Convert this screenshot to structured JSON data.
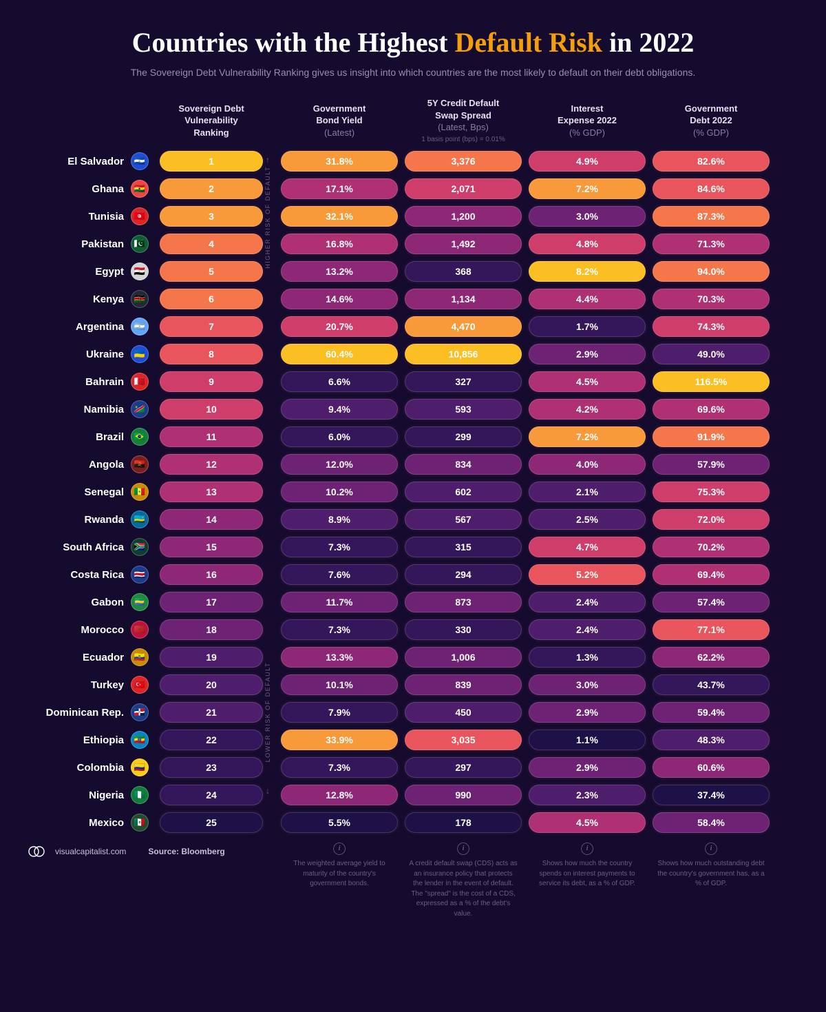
{
  "title_prefix": "Countries with the Highest ",
  "title_accent": "Default Risk",
  "title_suffix": " in 2022",
  "subtitle": "The Sovereign Debt Vulnerability Ranking gives us insight into which countries are the most likely to default on their debt obligations.",
  "columns": {
    "rank": {
      "line1": "Sovereign Debt",
      "line2": "Vulnerability",
      "line3": "Ranking"
    },
    "yield": {
      "line1": "Government",
      "line2": "Bond Yield",
      "sub": "(Latest)"
    },
    "cds": {
      "line1": "5Y Credit Default",
      "line2": "Swap Spread",
      "sub": "(Latest, Bps)",
      "tiny": "1 basis point (bps) = 0.01%"
    },
    "int": {
      "line1": "Interest",
      "line2": "Expense 2022",
      "sub": "(% GDP)"
    },
    "debt": {
      "line1": "Government",
      "line2": "Debt 2022",
      "sub": "(% GDP)"
    }
  },
  "axis_high": "HIGHER RISK OF DEFAULT",
  "axis_low": "LOWER RISK OF DEFAULT",
  "palette_scale": [
    "#1e1147",
    "#34175a",
    "#4e1d6b",
    "#6d2274",
    "#8e2876",
    "#af3073",
    "#cf3d6a",
    "#e8555c",
    "#f5764b",
    "#f99a3a",
    "#fbbf24"
  ],
  "rows": [
    {
      "country": "El Salvador",
      "flag": "🇸🇻",
      "flag_bg": "#1d4ed8",
      "rank": "1",
      "rank_l": 10,
      "yield": "31.8%",
      "yield_l": 9,
      "cds": "3,376",
      "cds_l": 8,
      "int": "4.9%",
      "int_l": 6,
      "debt": "82.6%",
      "debt_l": 7
    },
    {
      "country": "Ghana",
      "flag": "🇬🇭",
      "flag_bg": "#ef4444",
      "rank": "2",
      "rank_l": 9,
      "yield": "17.1%",
      "yield_l": 5,
      "cds": "2,071",
      "cds_l": 6,
      "int": "7.2%",
      "int_l": 9,
      "debt": "84.6%",
      "debt_l": 7
    },
    {
      "country": "Tunisia",
      "flag": "🇹🇳",
      "flag_bg": "#dc2626",
      "rank": "3",
      "rank_l": 9,
      "yield": "32.1%",
      "yield_l": 9,
      "cds": "1,200",
      "cds_l": 4,
      "int": "3.0%",
      "int_l": 3,
      "debt": "87.3%",
      "debt_l": 8
    },
    {
      "country": "Pakistan",
      "flag": "🇵🇰",
      "flag_bg": "#0f5e2f",
      "rank": "4",
      "rank_l": 8,
      "yield": "16.8%",
      "yield_l": 5,
      "cds": "1,492",
      "cds_l": 4,
      "int": "4.8%",
      "int_l": 6,
      "debt": "71.3%",
      "debt_l": 5
    },
    {
      "country": "Egypt",
      "flag": "🇪🇬",
      "flag_bg": "#d4d4d4",
      "rank": "5",
      "rank_l": 8,
      "yield": "13.2%",
      "yield_l": 4,
      "cds": "368",
      "cds_l": 1,
      "int": "8.2%",
      "int_l": 10,
      "debt": "94.0%",
      "debt_l": 8
    },
    {
      "country": "Kenya",
      "flag": "🇰🇪",
      "flag_bg": "#1f2937",
      "rank": "6",
      "rank_l": 8,
      "yield": "14.6%",
      "yield_l": 4,
      "cds": "1,134",
      "cds_l": 4,
      "int": "4.4%",
      "int_l": 5,
      "debt": "70.3%",
      "debt_l": 5
    },
    {
      "country": "Argentina",
      "flag": "🇦🇷",
      "flag_bg": "#60a5fa",
      "rank": "7",
      "rank_l": 7,
      "yield": "20.7%",
      "yield_l": 6,
      "cds": "4,470",
      "cds_l": 9,
      "int": "1.7%",
      "int_l": 1,
      "debt": "74.3%",
      "debt_l": 6
    },
    {
      "country": "Ukraine",
      "flag": "🇺🇦",
      "flag_bg": "#1d4ed8",
      "rank": "8",
      "rank_l": 7,
      "yield": "60.4%",
      "yield_l": 10,
      "cds": "10,856",
      "cds_l": 10,
      "int": "2.9%",
      "int_l": 3,
      "debt": "49.0%",
      "debt_l": 2
    },
    {
      "country": "Bahrain",
      "flag": "🇧🇭",
      "flag_bg": "#dc2626",
      "rank": "9",
      "rank_l": 6,
      "yield": "6.6%",
      "yield_l": 1,
      "cds": "327",
      "cds_l": 1,
      "int": "4.5%",
      "int_l": 5,
      "debt": "116.5%",
      "debt_l": 10
    },
    {
      "country": "Namibia",
      "flag": "🇳🇦",
      "flag_bg": "#1e3a8a",
      "rank": "10",
      "rank_l": 6,
      "yield": "9.4%",
      "yield_l": 2,
      "cds": "593",
      "cds_l": 2,
      "int": "4.2%",
      "int_l": 5,
      "debt": "69.6%",
      "debt_l": 5
    },
    {
      "country": "Brazil",
      "flag": "🇧🇷",
      "flag_bg": "#15803d",
      "rank": "11",
      "rank_l": 5,
      "yield": "6.0%",
      "yield_l": 1,
      "cds": "299",
      "cds_l": 1,
      "int": "7.2%",
      "int_l": 9,
      "debt": "91.9%",
      "debt_l": 8
    },
    {
      "country": "Angola",
      "flag": "🇦🇴",
      "flag_bg": "#7f1d1d",
      "rank": "12",
      "rank_l": 5,
      "yield": "12.0%",
      "yield_l": 3,
      "cds": "834",
      "cds_l": 3,
      "int": "4.0%",
      "int_l": 4,
      "debt": "57.9%",
      "debt_l": 3
    },
    {
      "country": "Senegal",
      "flag": "🇸🇳",
      "flag_bg": "#ca8a04",
      "rank": "13",
      "rank_l": 5,
      "yield": "10.2%",
      "yield_l": 3,
      "cds": "602",
      "cds_l": 2,
      "int": "2.1%",
      "int_l": 2,
      "debt": "75.3%",
      "debt_l": 6
    },
    {
      "country": "Rwanda",
      "flag": "🇷🇼",
      "flag_bg": "#0369a1",
      "rank": "14",
      "rank_l": 4,
      "yield": "8.9%",
      "yield_l": 2,
      "cds": "567",
      "cds_l": 2,
      "int": "2.5%",
      "int_l": 2,
      "debt": "72.0%",
      "debt_l": 6
    },
    {
      "country": "South Africa",
      "flag": "🇿🇦",
      "flag_bg": "#0f3d2e",
      "rank": "15",
      "rank_l": 4,
      "yield": "7.3%",
      "yield_l": 1,
      "cds": "315",
      "cds_l": 1,
      "int": "4.7%",
      "int_l": 6,
      "debt": "70.2%",
      "debt_l": 5
    },
    {
      "country": "Costa Rica",
      "flag": "🇨🇷",
      "flag_bg": "#1e3a8a",
      "rank": "16",
      "rank_l": 4,
      "yield": "7.6%",
      "yield_l": 1,
      "cds": "294",
      "cds_l": 1,
      "int": "5.2%",
      "int_l": 7,
      "debt": "69.4%",
      "debt_l": 5
    },
    {
      "country": "Gabon",
      "flag": "🇬🇦",
      "flag_bg": "#1e8a3b",
      "rank": "17",
      "rank_l": 3,
      "yield": "11.7%",
      "yield_l": 3,
      "cds": "873",
      "cds_l": 3,
      "int": "2.4%",
      "int_l": 2,
      "debt": "57.4%",
      "debt_l": 3
    },
    {
      "country": "Morocco",
      "flag": "🇲🇦",
      "flag_bg": "#be123c",
      "rank": "18",
      "rank_l": 3,
      "yield": "7.3%",
      "yield_l": 1,
      "cds": "330",
      "cds_l": 1,
      "int": "2.4%",
      "int_l": 2,
      "debt": "77.1%",
      "debt_l": 7
    },
    {
      "country": "Ecuador",
      "flag": "🇪🇨",
      "flag_bg": "#ca8a04",
      "rank": "19",
      "rank_l": 2,
      "yield": "13.3%",
      "yield_l": 4,
      "cds": "1,006",
      "cds_l": 3,
      "int": "1.3%",
      "int_l": 1,
      "debt": "62.2%",
      "debt_l": 4
    },
    {
      "country": "Turkey",
      "flag": "🇹🇷",
      "flag_bg": "#dc2626",
      "rank": "20",
      "rank_l": 2,
      "yield": "10.1%",
      "yield_l": 3,
      "cds": "839",
      "cds_l": 3,
      "int": "3.0%",
      "int_l": 3,
      "debt": "43.7%",
      "debt_l": 1
    },
    {
      "country": "Dominican Rep.",
      "flag": "🇩🇴",
      "flag_bg": "#1e3a8a",
      "rank": "21",
      "rank_l": 2,
      "yield": "7.9%",
      "yield_l": 1,
      "cds": "450",
      "cds_l": 2,
      "int": "2.9%",
      "int_l": 3,
      "debt": "59.4%",
      "debt_l": 3
    },
    {
      "country": "Ethiopia",
      "flag": "🇪🇹",
      "flag_bg": "#0284c7",
      "rank": "22",
      "rank_l": 1,
      "yield": "33.9%",
      "yield_l": 9,
      "cds": "3,035",
      "cds_l": 7,
      "int": "1.1%",
      "int_l": 0,
      "debt": "48.3%",
      "debt_l": 2
    },
    {
      "country": "Colombia",
      "flag": "🇨🇴",
      "flag_bg": "#facc15",
      "rank": "23",
      "rank_l": 1,
      "yield": "7.3%",
      "yield_l": 1,
      "cds": "297",
      "cds_l": 1,
      "int": "2.9%",
      "int_l": 3,
      "debt": "60.6%",
      "debt_l": 4
    },
    {
      "country": "Nigeria",
      "flag": "🇳🇬",
      "flag_bg": "#0f7c3a",
      "rank": "24",
      "rank_l": 1,
      "yield": "12.8%",
      "yield_l": 4,
      "cds": "990",
      "cds_l": 3,
      "int": "2.3%",
      "int_l": 2,
      "debt": "37.4%",
      "debt_l": 0
    },
    {
      "country": "Mexico",
      "flag": "🇲🇽",
      "flag_bg": "#1f4d2e",
      "rank": "25",
      "rank_l": 0,
      "yield": "5.5%",
      "yield_l": 0,
      "cds": "178",
      "cds_l": 0,
      "int": "4.5%",
      "int_l": 5,
      "debt": "58.4%",
      "debt_l": 3
    }
  ],
  "footer": {
    "site": "visualcapitalist.com",
    "source_label": "Source: Bloomberg",
    "desc_yield": "The weighted average yield to maturity of the country's government bonds.",
    "desc_cds": "A credit default swap (CDS) acts as an insurance policy that protects the lender in the event of default. The \"spread\" is the cost of a CDS, expressed as a % of the debt's value.",
    "desc_int": "Shows how much the country spends on interest payments to service its debt, as a % of GDP.",
    "desc_debt": "Shows how much outstanding debt the country's government has, as a % of GDP."
  }
}
